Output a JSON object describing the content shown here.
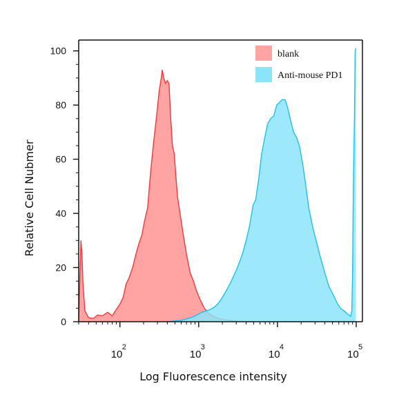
{
  "chart_data": {
    "type": "area",
    "xlabel": "Log Fluorescence intensity",
    "ylabel": "Relative Cell Nubmer",
    "x_scale": "log",
    "xlim": [
      30,
      120000
    ],
    "ylim": [
      0,
      104
    ],
    "x_ticks": [
      {
        "base": "10",
        "exp": "2",
        "value": 100
      },
      {
        "base": "10",
        "exp": "3",
        "value": 1000
      },
      {
        "base": "10",
        "exp": "4",
        "value": 10000
      },
      {
        "base": "10",
        "exp": "5",
        "value": 100000
      }
    ],
    "y_ticks": [
      "0",
      "20",
      "40",
      "60",
      "80",
      "100"
    ],
    "y_tick_values": [
      0,
      20,
      40,
      60,
      80,
      100
    ],
    "legend_position": "top-right",
    "series": [
      {
        "name": "blank",
        "fill": "#ffa3a3",
        "stroke": "#f03a3a",
        "x": [
          30,
          32,
          33,
          34,
          36,
          40,
          46,
          52,
          60,
          70,
          80,
          90,
          100,
          110,
          120,
          130,
          145,
          160,
          175,
          190,
          205,
          225,
          245,
          265,
          290,
          315,
          335,
          345,
          360,
          380,
          400,
          420,
          440,
          465,
          490,
          510,
          540,
          580,
          630,
          700,
          780,
          860,
          950,
          1050,
          1180,
          1350,
          1550,
          1800,
          2100,
          2600,
          3200,
          3800,
          5000
        ],
        "y": [
          0,
          30,
          25,
          14,
          4,
          1.5,
          1.2,
          2.5,
          2.2,
          3.5,
          2.2,
          4.5,
          6.5,
          9,
          14,
          16,
          20,
          25,
          29,
          32,
          37,
          42,
          55,
          65,
          75,
          85,
          90,
          93,
          90,
          88,
          89,
          88,
          76,
          65,
          62,
          55,
          46,
          40,
          33,
          25,
          18,
          15,
          11,
          8,
          5,
          3,
          2,
          1.2,
          0.8,
          0.4,
          0.2,
          0.1,
          0
        ]
      },
      {
        "name": "Anti-mouse PD1",
        "fill": "#8ce4fa",
        "stroke": "#1fbfee",
        "x": [
          400,
          600,
          800,
          950,
          1100,
          1250,
          1400,
          1600,
          1800,
          2000,
          2300,
          2600,
          3000,
          3300,
          3600,
          4000,
          4400,
          4900,
          5300,
          5800,
          6300,
          6900,
          7500,
          8200,
          9000,
          9800,
          10600,
          11500,
          12500,
          13500,
          14500,
          16000,
          17500,
          19000,
          21000,
          23000,
          25000,
          28000,
          31000,
          35000,
          40000,
          45000,
          51000,
          57000,
          63000,
          70000,
          77000,
          85000,
          88000,
          90000,
          92000,
          95000,
          97000,
          99000
        ],
        "y": [
          0,
          0.5,
          1.5,
          2.5,
          3.5,
          4,
          4.5,
          5.5,
          7,
          9,
          12,
          15,
          19,
          22,
          25,
          30,
          35,
          43,
          45,
          53,
          62,
          68,
          73,
          75,
          76,
          80,
          81,
          82,
          82,
          79,
          75,
          70,
          68,
          65,
          58,
          50,
          42,
          35,
          30,
          24,
          18,
          13,
          10,
          7,
          5,
          4,
          3,
          2,
          4,
          18,
          50,
          75,
          100,
          101
        ]
      }
    ]
  }
}
